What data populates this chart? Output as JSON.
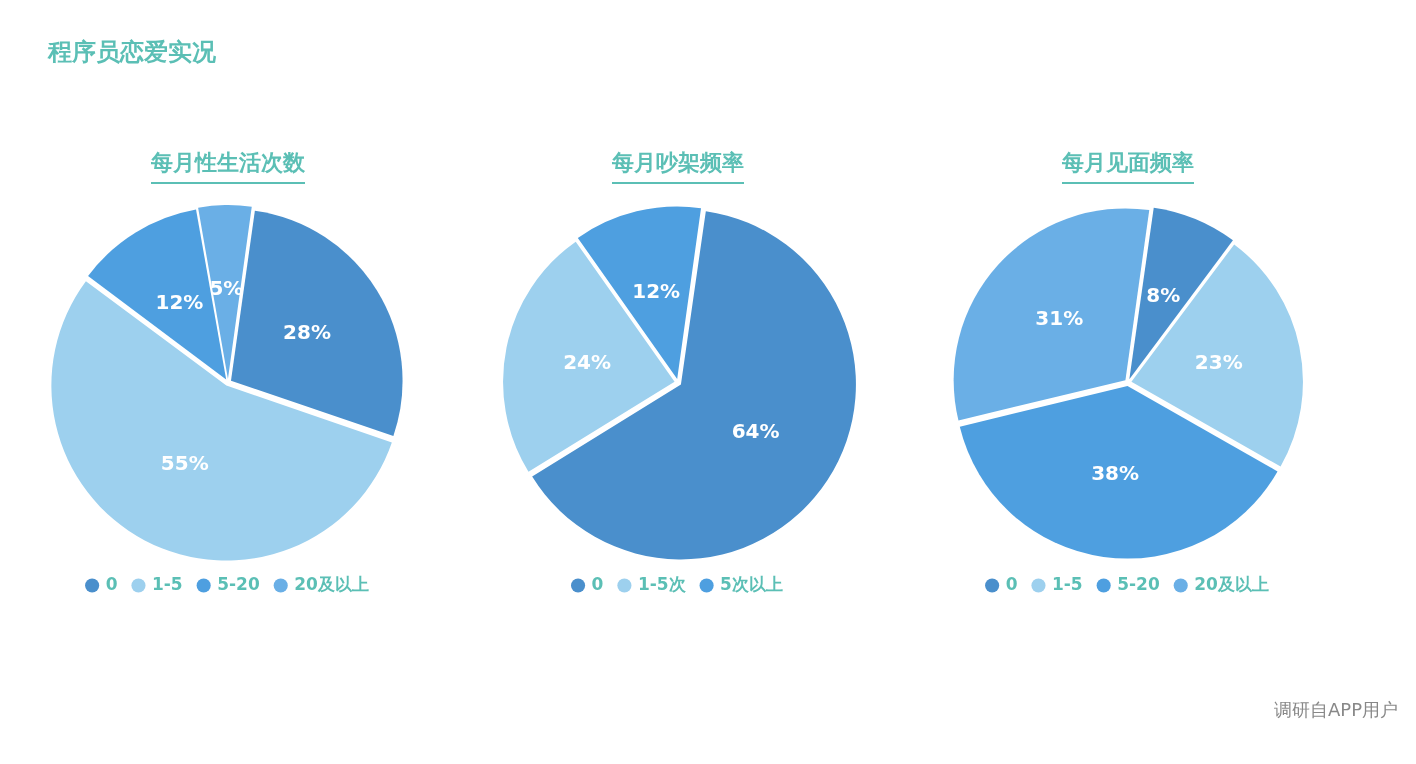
{
  "chart_data": [
    {
      "type": "pie",
      "title": "每月性生活次数",
      "categories": [
        "0",
        "1-5",
        "5-20",
        "20及以上"
      ],
      "values": [
        28,
        55,
        12,
        5
      ],
      "value_labels": [
        "28%",
        "55%",
        "12%",
        "5%"
      ],
      "colors": [
        "#4a8fcc",
        "#9dd0ee",
        "#4e9fe0",
        "#6aafe6"
      ],
      "legend": "bottom",
      "annotations": [
        "程序员恋爱实况"
      ]
    },
    {
      "type": "pie",
      "title": "每月吵架频率",
      "categories": [
        "0",
        "1-5次",
        "5次以上"
      ],
      "values": [
        64,
        24,
        12
      ],
      "value_labels": [
        "64%",
        "24%",
        "12%"
      ],
      "colors": [
        "#4a8fcc",
        "#9dd0ee",
        "#4e9fe0"
      ],
      "legend": "bottom"
    },
    {
      "type": "pie",
      "title": "每月见面频率",
      "categories": [
        "0",
        "1-5",
        "5-20",
        "20及以上"
      ],
      "values": [
        8,
        23,
        38,
        31
      ],
      "value_labels": [
        "8%",
        "23%",
        "38%",
        "31%"
      ],
      "colors": [
        "#4a8fcc",
        "#9dd0ee",
        "#4e9fe0",
        "#6aafe6"
      ],
      "legend": "bottom",
      "annotations": [
        "调研自APP用户"
      ]
    }
  ]
}
